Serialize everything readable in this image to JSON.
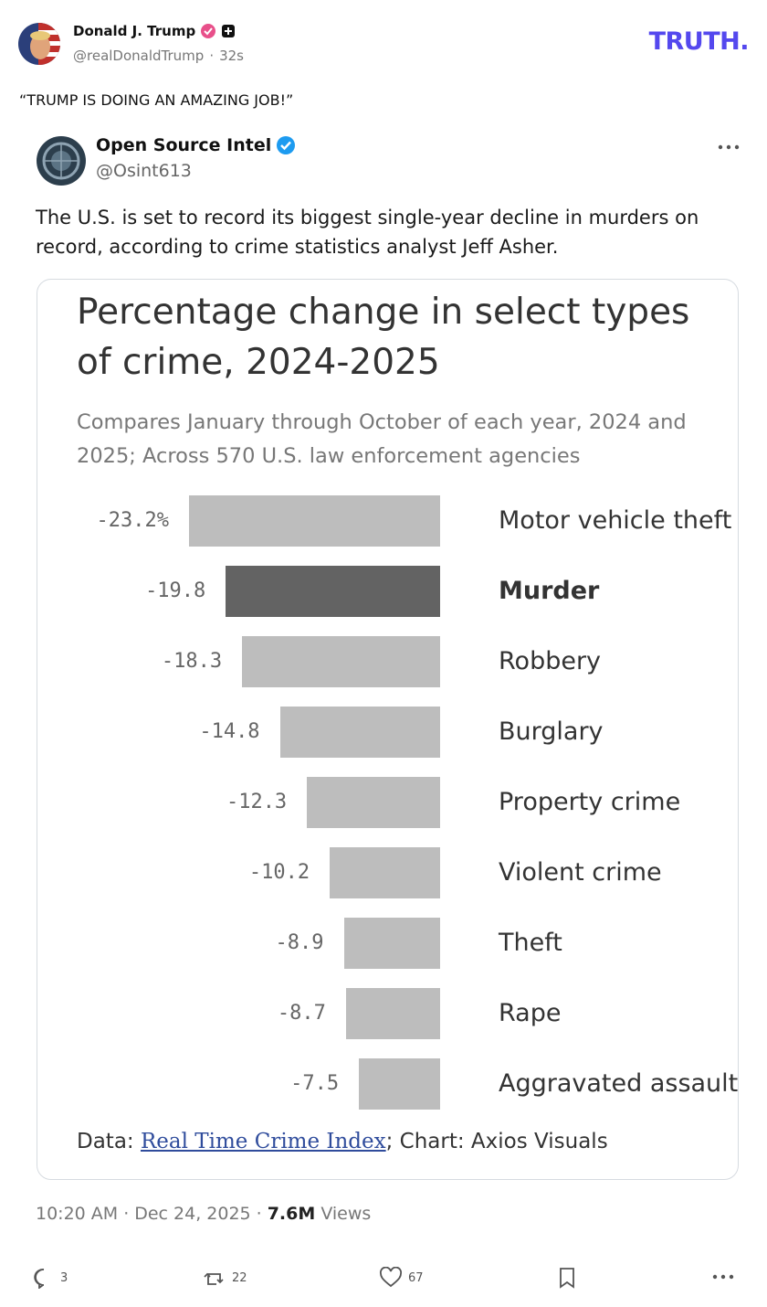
{
  "post": {
    "author": "Donald J. Trump",
    "handle": "@realDonaldTrump",
    "time": "32s",
    "logo": "TRUTH.",
    "text": "“TRUMP IS DOING AN AMAZING JOB!”"
  },
  "tweet": {
    "author": "Open Source Intel",
    "handle": "@Osint613",
    "text": "The U.S. is set to record its biggest single-year decline in murders on record, according to crime statistics analyst Jeff Asher.",
    "time": "10:20 AM",
    "date": "Dec 24, 2025",
    "views": "7.6M",
    "views_label": "Views",
    "replies": "3",
    "reposts": "22",
    "likes": "67"
  },
  "chart_data": {
    "type": "bar",
    "orientation": "horizontal",
    "title": "Percentage change in select types of crime, 2024-2025",
    "subtitle": "Compares January through October of each year, 2024 and 2025; Across 570 U.S. law enforcement agencies",
    "categories": [
      "Motor vehicle theft",
      "Murder",
      "Robbery",
      "Burglary",
      "Property crime",
      "Violent crime",
      "Theft",
      "Rape",
      "Aggravated assault"
    ],
    "values": [
      -23.2,
      -19.8,
      -18.3,
      -14.8,
      -12.3,
      -10.2,
      -8.9,
      -8.7,
      -7.5
    ],
    "value_labels": [
      "-23.2%",
      "-19.8",
      "-18.3",
      "-14.8",
      "-12.3",
      "-10.2",
      "-8.9",
      "-8.7",
      "-7.5"
    ],
    "colors": [
      "#bdbdbd",
      "#636363",
      "#bdbdbd",
      "#bdbdbd",
      "#bdbdbd",
      "#bdbdbd",
      "#bdbdbd",
      "#bdbdbd",
      "#bdbdbd"
    ],
    "source_prefix": "Data:",
    "source_link": "Real Time Crime Index",
    "source_suffix": "; Chart: Axios Visuals"
  }
}
